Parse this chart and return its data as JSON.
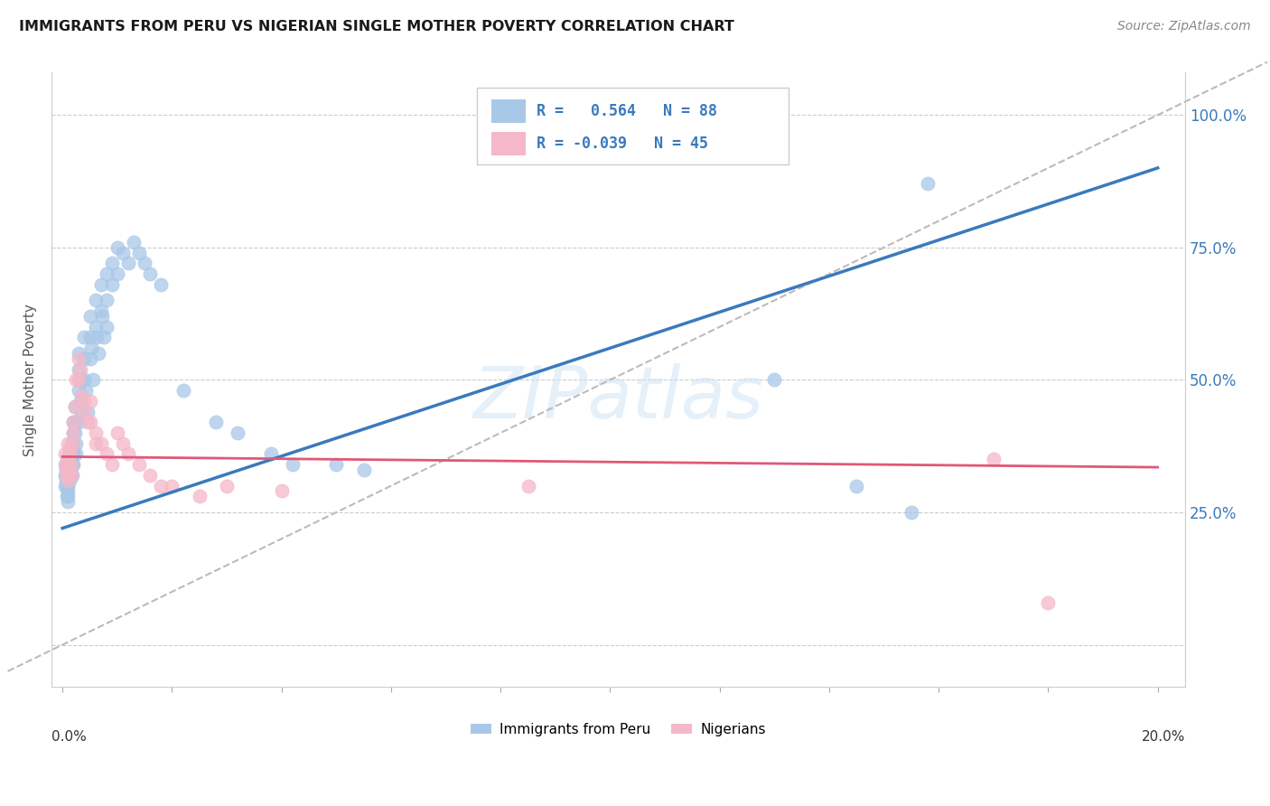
{
  "title": "IMMIGRANTS FROM PERU VS NIGERIAN SINGLE MOTHER POVERTY CORRELATION CHART",
  "source": "Source: ZipAtlas.com",
  "ylabel": "Single Mother Poverty",
  "y_ticks": [
    0.0,
    0.25,
    0.5,
    0.75,
    1.0
  ],
  "y_tick_labels": [
    "",
    "25.0%",
    "50.0%",
    "75.0%",
    "100.0%"
  ],
  "x_ticks": [
    0.0,
    0.02,
    0.04,
    0.06,
    0.08,
    0.1,
    0.12,
    0.14,
    0.16,
    0.18,
    0.2
  ],
  "xlim": [
    -0.002,
    0.205
  ],
  "ylim": [
    -0.08,
    1.08
  ],
  "blue_color": "#a8c8e8",
  "pink_color": "#f4b8c8",
  "blue_line_color": "#3a7abd",
  "pink_line_color": "#e05878",
  "blue_r": 0.564,
  "blue_n": 88,
  "pink_r": -0.039,
  "pink_n": 45,
  "peru_x": [
    0.0005,
    0.0005,
    0.0005,
    0.0006,
    0.0006,
    0.0007,
    0.0008,
    0.0008,
    0.0009,
    0.001,
    0.001,
    0.001,
    0.001,
    0.001,
    0.001,
    0.0012,
    0.0012,
    0.0013,
    0.0013,
    0.0013,
    0.0014,
    0.0015,
    0.0015,
    0.0016,
    0.0016,
    0.0017,
    0.0018,
    0.0018,
    0.002,
    0.002,
    0.002,
    0.002,
    0.002,
    0.0022,
    0.0022,
    0.0023,
    0.0025,
    0.0025,
    0.003,
    0.003,
    0.003,
    0.003,
    0.0032,
    0.0033,
    0.0035,
    0.004,
    0.004,
    0.004,
    0.0042,
    0.0045,
    0.005,
    0.005,
    0.005,
    0.0052,
    0.0055,
    0.006,
    0.006,
    0.0062,
    0.0065,
    0.007,
    0.007,
    0.0072,
    0.0075,
    0.008,
    0.008,
    0.008,
    0.009,
    0.009,
    0.01,
    0.01,
    0.011,
    0.012,
    0.013,
    0.014,
    0.015,
    0.016,
    0.018,
    0.022,
    0.028,
    0.032,
    0.038,
    0.042,
    0.05,
    0.055,
    0.13,
    0.145,
    0.155,
    0.158
  ],
  "peru_y": [
    0.34,
    0.32,
    0.3,
    0.33,
    0.31,
    0.32,
    0.3,
    0.28,
    0.31,
    0.35,
    0.32,
    0.3,
    0.29,
    0.28,
    0.27,
    0.33,
    0.31,
    0.36,
    0.34,
    0.32,
    0.35,
    0.34,
    0.32,
    0.38,
    0.35,
    0.36,
    0.34,
    0.32,
    0.42,
    0.4,
    0.38,
    0.36,
    0.34,
    0.45,
    0.42,
    0.4,
    0.38,
    0.36,
    0.55,
    0.52,
    0.48,
    0.42,
    0.5,
    0.46,
    0.44,
    0.58,
    0.54,
    0.5,
    0.48,
    0.44,
    0.62,
    0.58,
    0.54,
    0.56,
    0.5,
    0.65,
    0.6,
    0.58,
    0.55,
    0.68,
    0.63,
    0.62,
    0.58,
    0.7,
    0.65,
    0.6,
    0.72,
    0.68,
    0.75,
    0.7,
    0.74,
    0.72,
    0.76,
    0.74,
    0.72,
    0.7,
    0.68,
    0.48,
    0.42,
    0.4,
    0.36,
    0.34,
    0.34,
    0.33,
    0.5,
    0.3,
    0.25,
    0.87
  ],
  "nigeria_x": [
    0.0005,
    0.0006,
    0.0007,
    0.0008,
    0.0009,
    0.001,
    0.001,
    0.001,
    0.0012,
    0.0013,
    0.0014,
    0.0015,
    0.0016,
    0.002,
    0.002,
    0.002,
    0.0022,
    0.0025,
    0.003,
    0.003,
    0.0032,
    0.0035,
    0.004,
    0.004,
    0.0045,
    0.005,
    0.005,
    0.006,
    0.006,
    0.007,
    0.008,
    0.009,
    0.01,
    0.011,
    0.012,
    0.014,
    0.016,
    0.018,
    0.02,
    0.025,
    0.03,
    0.04,
    0.085,
    0.17,
    0.18
  ],
  "nigeria_y": [
    0.36,
    0.34,
    0.33,
    0.32,
    0.31,
    0.38,
    0.35,
    0.32,
    0.37,
    0.36,
    0.34,
    0.33,
    0.32,
    0.42,
    0.4,
    0.38,
    0.45,
    0.5,
    0.54,
    0.5,
    0.52,
    0.47,
    0.46,
    0.44,
    0.42,
    0.46,
    0.42,
    0.4,
    0.38,
    0.38,
    0.36,
    0.34,
    0.4,
    0.38,
    0.36,
    0.34,
    0.32,
    0.3,
    0.3,
    0.28,
    0.3,
    0.29,
    0.3,
    0.35,
    0.08
  ]
}
